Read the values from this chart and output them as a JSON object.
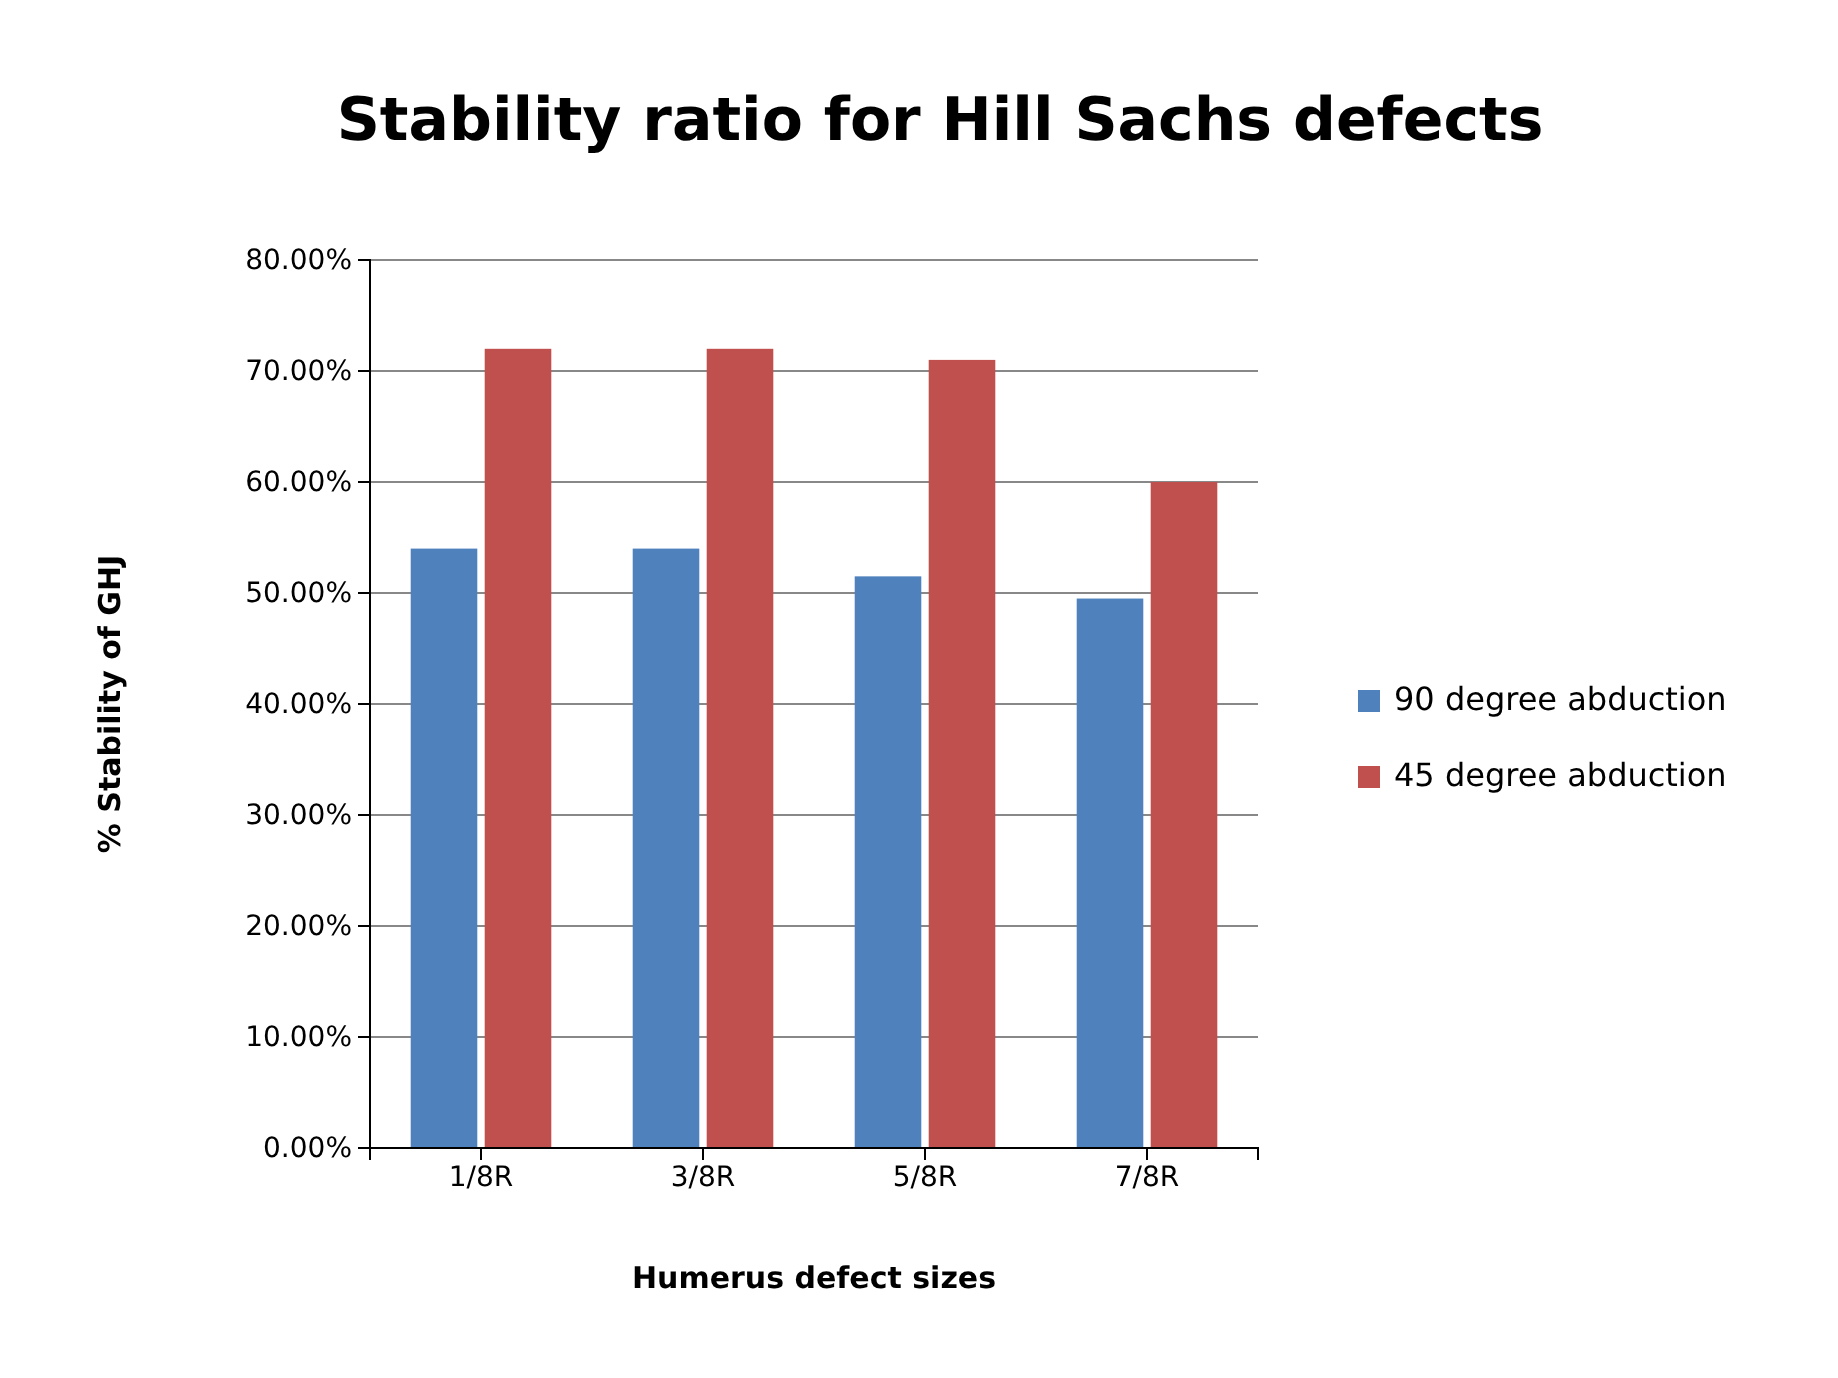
{
  "chart_data": {
    "type": "bar",
    "title": "Stability ratio for Hill Sachs defects",
    "xlabel": "Humerus defect sizes",
    "ylabel": "% Stability of GHJ",
    "categories": [
      "1/8R",
      "3/8R",
      "5/8R",
      "7/8R"
    ],
    "series": [
      {
        "name": "90 degree abduction",
        "color": "#4f81bd",
        "values": [
          54,
          54,
          51.5,
          49.5
        ]
      },
      {
        "name": "45 degree abduction",
        "color": "#c0504d",
        "values": [
          72,
          72,
          71,
          60
        ]
      }
    ],
    "ylim": [
      0,
      80
    ],
    "yticks": [
      {
        "value": 0,
        "label": "0.00%"
      },
      {
        "value": 10,
        "label": "10.00%"
      },
      {
        "value": 20,
        "label": "20.00%"
      },
      {
        "value": 30,
        "label": "30.00%"
      },
      {
        "value": 40,
        "label": "40.00%"
      },
      {
        "value": 50,
        "label": "50.00%"
      },
      {
        "value": 60,
        "label": "60.00%"
      },
      {
        "value": 70,
        "label": "70.00%"
      },
      {
        "value": 80,
        "label": "80.00%"
      }
    ],
    "grid": "y",
    "legend": "right"
  }
}
